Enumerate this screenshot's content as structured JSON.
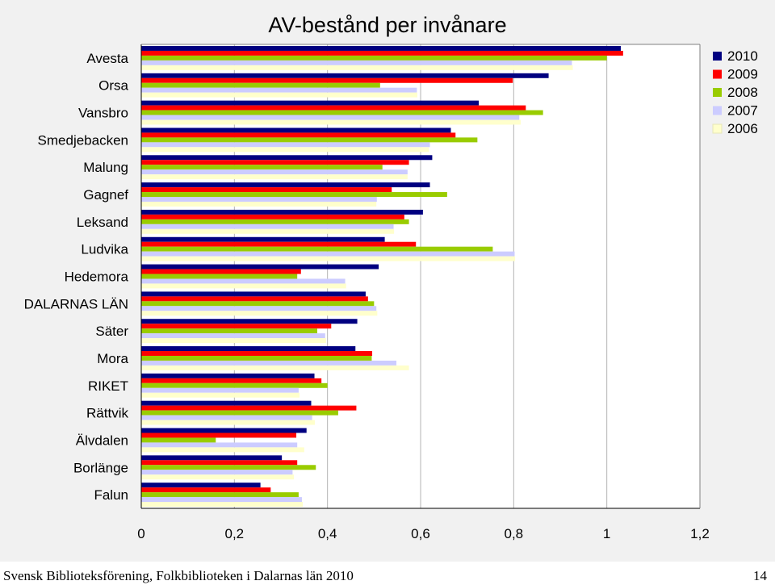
{
  "chart_data": {
    "type": "bar",
    "orientation": "horizontal",
    "title": "AV-bestånd per invånare",
    "xlabel": "",
    "ylabel": "",
    "xlim": [
      0,
      1.2
    ],
    "x_ticks": [
      "0",
      "0,2",
      "0,4",
      "0,6",
      "0,8",
      "1",
      "1,2"
    ],
    "grid": "vertical",
    "legend": "top-right",
    "categories": [
      "Avesta",
      "Orsa",
      "Vansbro",
      "Smedjebacken",
      "Malung",
      "Gagnef",
      "Leksand",
      "Ludvika",
      "Hedemora",
      "DALARNAS LÄN",
      "Säter",
      "Mora",
      "RIKET",
      "Rättvik",
      "Älvdalen",
      "Borlänge",
      "Falun"
    ],
    "series": [
      {
        "name": "2010",
        "color": "#000080",
        "values": [
          1.03,
          0.875,
          0.725,
          0.665,
          0.625,
          0.62,
          0.605,
          0.523,
          0.51,
          0.482,
          0.464,
          0.46,
          0.372,
          0.365,
          0.355,
          0.302,
          0.256
        ]
      },
      {
        "name": "2009",
        "color": "#ff0000",
        "values": [
          1.035,
          0.798,
          0.826,
          0.675,
          0.575,
          0.538,
          0.565,
          0.59,
          0.343,
          0.487,
          0.408,
          0.496,
          0.387,
          0.462,
          0.333,
          0.335,
          0.278
        ]
      },
      {
        "name": "2008",
        "color": "#99cc00",
        "values": [
          1.0,
          0.513,
          0.863,
          0.722,
          0.518,
          0.657,
          0.575,
          0.755,
          0.335,
          0.5,
          0.378,
          0.495,
          0.4,
          0.423,
          0.16,
          0.375,
          0.338
        ]
      },
      {
        "name": "2007",
        "color": "#ccccff",
        "values": [
          0.925,
          0.592,
          0.812,
          0.62,
          0.572,
          0.506,
          0.542,
          0.802,
          0.438,
          0.505,
          0.395,
          0.548,
          0.338,
          0.367,
          0.335,
          0.325,
          0.345
        ]
      },
      {
        "name": "2006",
        "color": "#ffffcc",
        "values": [
          0.927,
          0.593,
          0.815,
          0.618,
          0.572,
          0.505,
          0.543,
          0.803,
          0.44,
          0.507,
          0.397,
          0.575,
          0.34,
          0.373,
          0.35,
          0.328,
          0.347
        ]
      }
    ]
  },
  "footer": {
    "text": "Svensk Biblioteksförening, Folkbiblioteken i Dalarnas län 2010",
    "page": "14"
  }
}
